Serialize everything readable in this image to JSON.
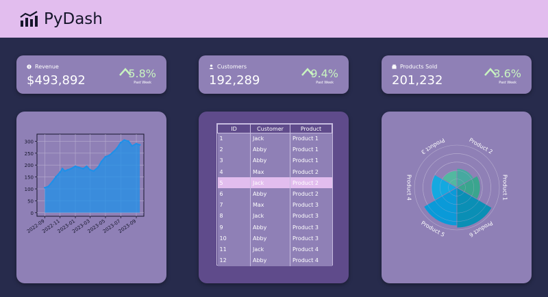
{
  "header": {
    "title": "PyDash",
    "logo_icon": "bar-chart-icon"
  },
  "kpis": [
    {
      "label": "Revenue",
      "icon": "dollar-icon",
      "value": "$493,892",
      "change": "5.8%",
      "period": "Past Week"
    },
    {
      "label": "Customers",
      "icon": "user-icon",
      "value": "192,289",
      "change": "9.4%",
      "period": "Past Week"
    },
    {
      "label": "Products Sold",
      "icon": "box-icon",
      "value": "201,232",
      "change": "3.6%",
      "period": "Past Week"
    }
  ],
  "colors": {
    "header_bg": "#e2bdee",
    "page_bg": "#272b4c",
    "card_bg": "#8f80b6",
    "table_card_bg": "#5f4b8b",
    "positive": "#c9f4c0",
    "line": "#1e90e8"
  },
  "table": {
    "columns": [
      "ID",
      "Customer",
      "Product"
    ],
    "selected_row": 4,
    "rows": [
      [
        "1",
        "Jack",
        "Product 1"
      ],
      [
        "2",
        "Abby",
        "Product 1"
      ],
      [
        "3",
        "Abby",
        "Product 1"
      ],
      [
        "4",
        "Max",
        "Product 2"
      ],
      [
        "5",
        "Jack",
        "Product 2"
      ],
      [
        "6",
        "Abby",
        "Product 2"
      ],
      [
        "7",
        "Max",
        "Product 3"
      ],
      [
        "8",
        "Jack",
        "Product 3"
      ],
      [
        "9",
        "Abby",
        "Product 3"
      ],
      [
        "10",
        "Abby",
        "Product 3"
      ],
      [
        "11",
        "Jack",
        "Product 4"
      ],
      [
        "12",
        "Abby",
        "Product 4"
      ]
    ]
  },
  "chart_data": [
    {
      "type": "area",
      "title": "",
      "xlabel": "",
      "ylabel": "",
      "x_ticks": [
        "2022-09",
        "2022-11",
        "2023-01",
        "2023-03",
        "2023-05",
        "2023-07",
        "2023-09"
      ],
      "y_ticks": [
        0,
        50,
        100,
        150,
        200,
        250,
        300
      ],
      "ylim": [
        -15,
        330
      ],
      "xlim": [
        "2022-08-01",
        "2023-10-01"
      ],
      "grid": true,
      "x": [
        "2022-09-01",
        "2022-09-15",
        "2022-10-01",
        "2022-10-15",
        "2022-11-01",
        "2022-11-10",
        "2022-11-20",
        "2022-12-01",
        "2022-12-15",
        "2023-01-01",
        "2023-01-15",
        "2023-02-01",
        "2023-02-15",
        "2023-03-01",
        "2023-03-15",
        "2023-04-01",
        "2023-04-15",
        "2023-05-01",
        "2023-05-15",
        "2023-06-01",
        "2023-06-15",
        "2023-07-01",
        "2023-07-15",
        "2023-08-01",
        "2023-08-15",
        "2023-09-01",
        "2023-09-15"
      ],
      "values": [
        105,
        110,
        130,
        150,
        170,
        185,
        175,
        180,
        185,
        195,
        190,
        185,
        195,
        180,
        175,
        190,
        215,
        235,
        240,
        255,
        270,
        295,
        305,
        300,
        280,
        290,
        285
      ]
    },
    {
      "type": "bar",
      "subtype": "polar",
      "categories": [
        "Product 1",
        "Product 2",
        "Product 3",
        "Product 4",
        "Product 5",
        "Product 6"
      ],
      "values": [
        55,
        45,
        40,
        60,
        90,
        95
      ],
      "colors": [
        "#3aa58e",
        "#46a9a0",
        "#52b8a0",
        "#14a9e0",
        "#0a9ad8",
        "#0a8fb5"
      ],
      "rlim": [
        0,
        100
      ]
    }
  ]
}
